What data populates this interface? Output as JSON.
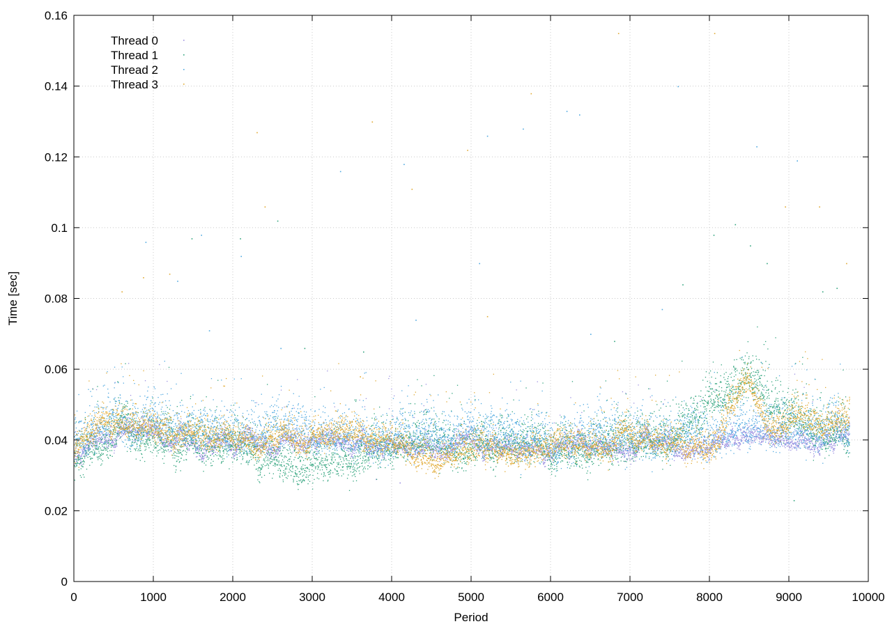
{
  "chart_data": {
    "type": "scatter",
    "title": "",
    "xlabel": "Period",
    "ylabel": "Time [sec]",
    "xlim": [
      0,
      10000
    ],
    "ylim": [
      0,
      0.16
    ],
    "x_ticks": [
      0,
      1000,
      2000,
      3000,
      4000,
      5000,
      6000,
      7000,
      8000,
      9000,
      10000
    ],
    "y_ticks": [
      0,
      0.02,
      0.04,
      0.06,
      0.08,
      0.1,
      0.12,
      0.14,
      0.16
    ],
    "x_tick_labels": [
      "0",
      "1000",
      "2000",
      "3000",
      "4000",
      "5000",
      "6000",
      "7000",
      "8000",
      "9000",
      "10000"
    ],
    "y_tick_labels": [
      "0",
      "0.02",
      "0.04",
      "0.06",
      "0.08",
      "0.1",
      "0.12",
      "0.14",
      "0.16"
    ],
    "grid": true,
    "legend_position": "top-left",
    "x_max_period": 9760,
    "series": [
      {
        "name": "Thread 0",
        "color": "#9b8fe0",
        "trend": [
          [
            0,
            0.035
          ],
          [
            500,
            0.043
          ],
          [
            1000,
            0.041
          ],
          [
            2000,
            0.039
          ],
          [
            3000,
            0.039
          ],
          [
            4000,
            0.038
          ],
          [
            5000,
            0.038
          ],
          [
            6000,
            0.037
          ],
          [
            7000,
            0.038
          ],
          [
            8000,
            0.038
          ],
          [
            8500,
            0.041
          ],
          [
            9000,
            0.04
          ],
          [
            9760,
            0.04
          ]
        ],
        "spread": 0.0015,
        "outliers": [
          [
            3800,
            0.029
          ],
          [
            4100,
            0.028
          ]
        ]
      },
      {
        "name": "Thread 1",
        "color": "#2fa37c",
        "trend": [
          [
            0,
            0.036
          ],
          [
            500,
            0.042
          ],
          [
            1000,
            0.04
          ],
          [
            1500,
            0.038
          ],
          [
            2000,
            0.038
          ],
          [
            2800,
            0.033
          ],
          [
            3300,
            0.034
          ],
          [
            4000,
            0.038
          ],
          [
            5000,
            0.038
          ],
          [
            6000,
            0.037
          ],
          [
            6500,
            0.036
          ],
          [
            7000,
            0.038
          ],
          [
            7500,
            0.04
          ],
          [
            7800,
            0.046
          ],
          [
            8200,
            0.052
          ],
          [
            8500,
            0.06
          ],
          [
            8800,
            0.05
          ],
          [
            9000,
            0.044
          ],
          [
            9760,
            0.041
          ]
        ],
        "spread": 0.004,
        "outliers": [
          [
            1480,
            0.097
          ],
          [
            2090,
            0.097
          ],
          [
            2560,
            0.102
          ],
          [
            2900,
            0.066
          ],
          [
            3640,
            0.065
          ],
          [
            6800,
            0.068
          ],
          [
            7660,
            0.084
          ],
          [
            8050,
            0.098
          ],
          [
            8320,
            0.101
          ],
          [
            8510,
            0.095
          ],
          [
            8720,
            0.09
          ],
          [
            9420,
            0.082
          ],
          [
            9600,
            0.083
          ],
          [
            9060,
            0.023
          ]
        ]
      },
      {
        "name": "Thread 2",
        "color": "#4ea8e0",
        "trend": [
          [
            0,
            0.04
          ],
          [
            500,
            0.045
          ],
          [
            1000,
            0.043
          ],
          [
            2000,
            0.042
          ],
          [
            3000,
            0.041
          ],
          [
            4000,
            0.041
          ],
          [
            5000,
            0.041
          ],
          [
            6000,
            0.04
          ],
          [
            7000,
            0.041
          ],
          [
            8000,
            0.041
          ],
          [
            8500,
            0.044
          ],
          [
            9000,
            0.043
          ],
          [
            9760,
            0.042
          ]
        ],
        "spread": 0.004,
        "outliers": [
          [
            900,
            0.096
          ],
          [
            1300,
            0.085
          ],
          [
            1600,
            0.098
          ],
          [
            2100,
            0.092
          ],
          [
            3350,
            0.116
          ],
          [
            4150,
            0.118
          ],
          [
            5200,
            0.126
          ],
          [
            5650,
            0.128
          ],
          [
            6200,
            0.133
          ],
          [
            6360,
            0.132
          ],
          [
            7600,
            0.14
          ],
          [
            8590,
            0.123
          ],
          [
            9100,
            0.119
          ],
          [
            1700,
            0.071
          ],
          [
            2600,
            0.066
          ],
          [
            4300,
            0.074
          ],
          [
            5100,
            0.09
          ],
          [
            6500,
            0.07
          ],
          [
            7400,
            0.077
          ]
        ]
      },
      {
        "name": "Thread 3",
        "color": "#e0a830",
        "trend": [
          [
            0,
            0.035
          ],
          [
            100,
            0.041
          ],
          [
            500,
            0.044
          ],
          [
            1000,
            0.042
          ],
          [
            1500,
            0.041
          ],
          [
            2000,
            0.04
          ],
          [
            2500,
            0.039
          ],
          [
            3000,
            0.04
          ],
          [
            3500,
            0.042
          ],
          [
            4000,
            0.039
          ],
          [
            4500,
            0.035
          ],
          [
            5000,
            0.038
          ],
          [
            5500,
            0.037
          ],
          [
            6000,
            0.039
          ],
          [
            6500,
            0.038
          ],
          [
            7000,
            0.041
          ],
          [
            7500,
            0.04
          ],
          [
            8000,
            0.035
          ],
          [
            8200,
            0.048
          ],
          [
            8500,
            0.056
          ],
          [
            8800,
            0.042
          ],
          [
            9000,
            0.047
          ],
          [
            9300,
            0.044
          ],
          [
            9760,
            0.046
          ]
        ],
        "spread": 0.0025,
        "outliers": [
          [
            870,
            0.086
          ],
          [
            1200,
            0.087
          ],
          [
            2300,
            0.127
          ],
          [
            2400,
            0.106
          ],
          [
            3750,
            0.13
          ],
          [
            4250,
            0.111
          ],
          [
            4950,
            0.122
          ],
          [
            5750,
            0.138
          ],
          [
            6850,
            0.155
          ],
          [
            8060,
            0.155
          ],
          [
            8950,
            0.106
          ],
          [
            9380,
            0.106
          ],
          [
            5200,
            0.075
          ],
          [
            3600,
            0.058
          ],
          [
            9720,
            0.09
          ],
          [
            600,
            0.082
          ]
        ]
      }
    ]
  }
}
